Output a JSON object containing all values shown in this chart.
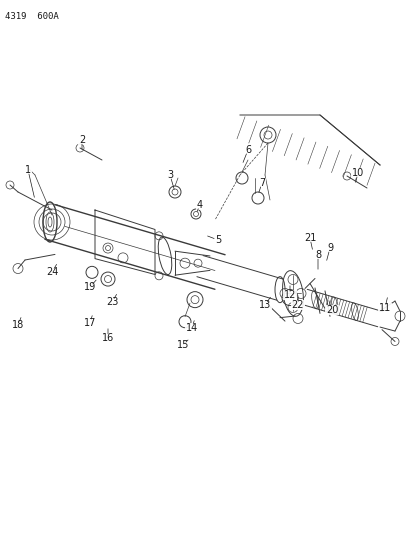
{
  "bg_color": "#ffffff",
  "line_color": "#3a3a3a",
  "label_color": "#1a1a1a",
  "header_text": "4319  600A",
  "header_fontsize": 6.5,
  "fig_width": 4.08,
  "fig_height": 5.33,
  "dpi": 100
}
